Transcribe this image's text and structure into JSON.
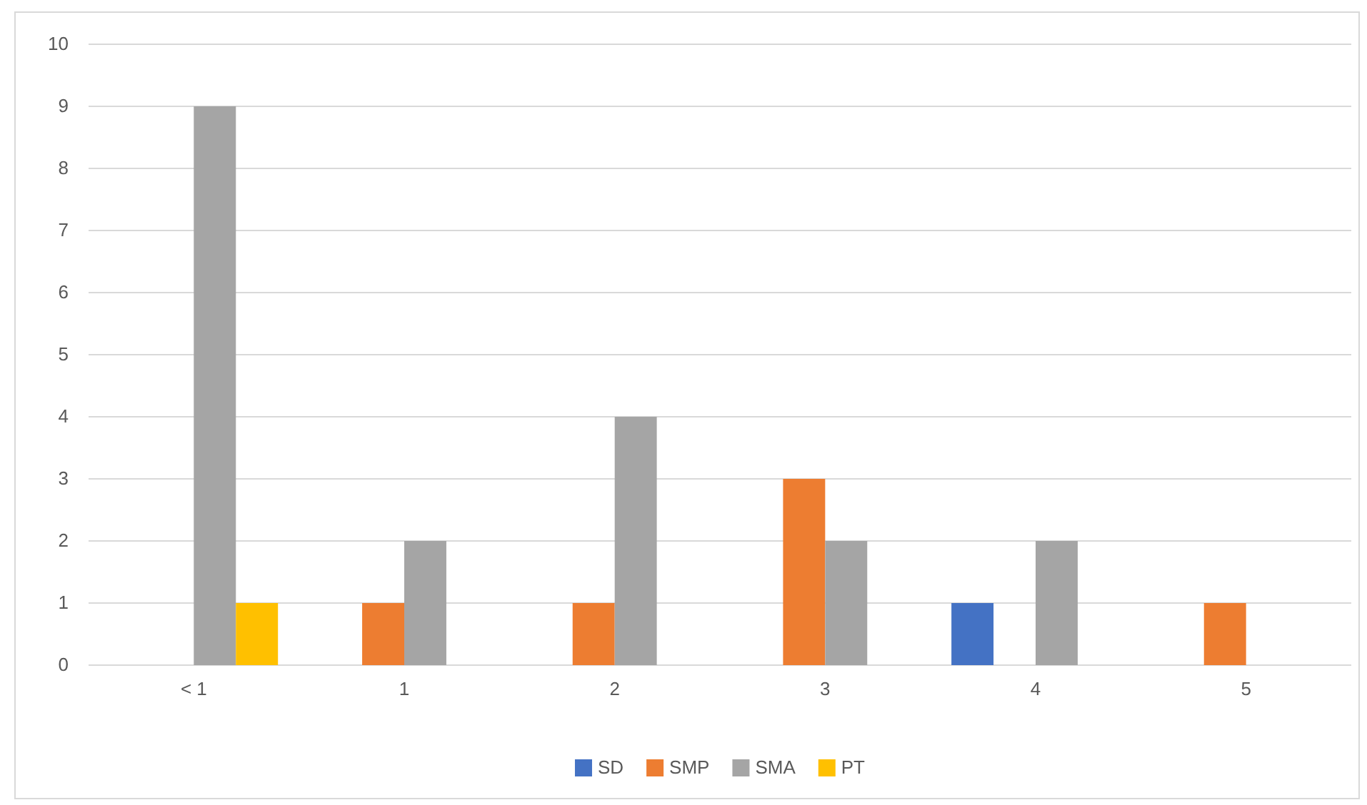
{
  "chart_data": {
    "type": "bar",
    "categories": [
      "< 1",
      "1",
      "2",
      "3",
      "4",
      "5"
    ],
    "series": [
      {
        "name": "SD",
        "color": "#4472c4",
        "values": [
          0,
          0,
          0,
          0,
          1,
          0
        ]
      },
      {
        "name": "SMP",
        "color": "#ed7d31",
        "values": [
          0,
          1,
          1,
          3,
          0,
          1
        ]
      },
      {
        "name": "SMA",
        "color": "#a5a5a5",
        "values": [
          9,
          2,
          4,
          2,
          2,
          0
        ]
      },
      {
        "name": "PT",
        "color": "#ffc000",
        "values": [
          1,
          0,
          0,
          0,
          0,
          0
        ]
      }
    ],
    "ylim": [
      0,
      10
    ],
    "yticks": [
      0,
      1,
      2,
      3,
      4,
      5,
      6,
      7,
      8,
      9,
      10
    ],
    "grid": "y",
    "legend": "bottom"
  }
}
